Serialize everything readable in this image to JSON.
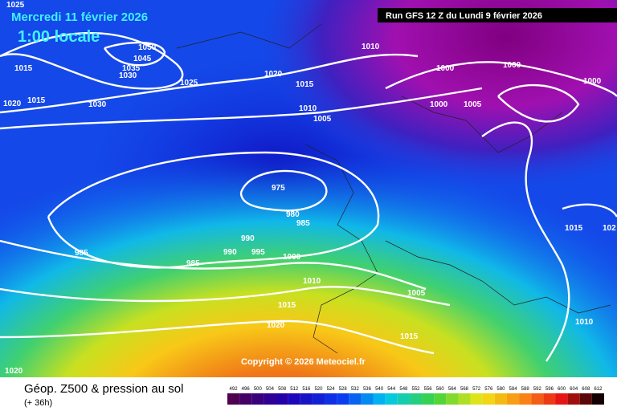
{
  "header": {
    "date": "Mercredi 11 février 2026",
    "time": "1:00 locale",
    "run": "Run GFS 12 Z du Lundi 9 février 2026"
  },
  "isobars": {
    "labels": [
      "1025",
      "1050",
      "1045",
      "1035",
      "1030",
      "1015",
      "1015",
      "1020",
      "1030",
      "1025",
      "1020",
      "1015",
      "1010",
      "1010",
      "1005",
      "1000",
      "1000",
      "1000",
      "1000",
      "1005",
      "975",
      "980",
      "985",
      "985",
      "985",
      "990",
      "990",
      "995",
      "1000",
      "1010",
      "1005",
      "1015",
      "1015",
      "102",
      "1020",
      "1015",
      "1010",
      "1020"
    ]
  },
  "copyright": "Copyright © 2026 Meteociel.fr",
  "footer": {
    "title": "Géop. Z500 & pression au sol",
    "lead": "(+ 36h)"
  },
  "legend": {
    "values": [
      492,
      496,
      500,
      504,
      508,
      512,
      516,
      520,
      524,
      528,
      532,
      536,
      540,
      544,
      548,
      552,
      556,
      560,
      564,
      568,
      572,
      576,
      580,
      584,
      588,
      592,
      596,
      600,
      604,
      608,
      612
    ]
  }
}
